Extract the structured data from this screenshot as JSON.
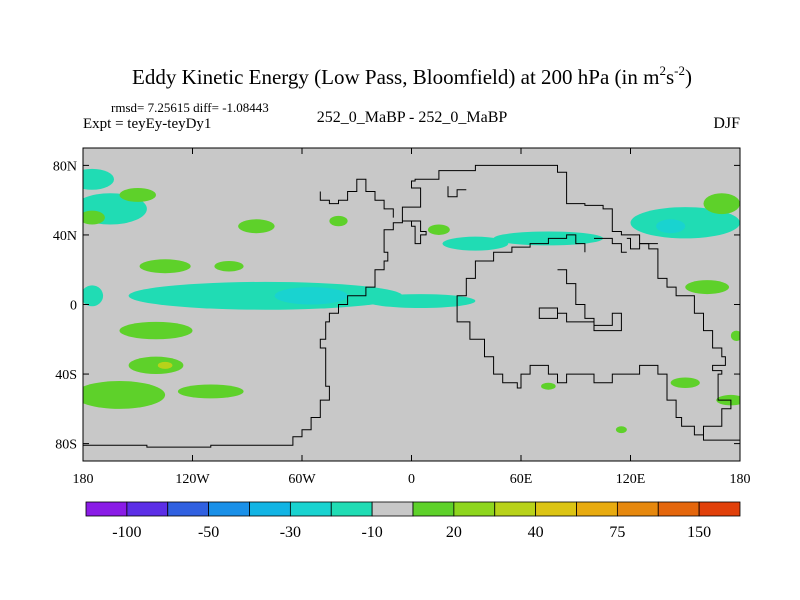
{
  "chart_data": {
    "type": "heatmap",
    "title_main": "Eddy Kinetic Energy (Low Pass, Bloomfield) at 200 hPa (in m",
    "title_sup1": "2",
    "title_mid": "s",
    "title_sup2": "-2",
    "title_end": ")",
    "stats": "rmsd= 7.25615 diff= -1.08443",
    "expt": "Expt = teyEy-teyDy1",
    "center_label": "252_0_MaBP - 252_0_MaBP",
    "season": "DJF",
    "x_ticks": [
      "180",
      "120W",
      "60W",
      "0",
      "60E",
      "120E",
      "180"
    ],
    "x_tick_values": [
      -180,
      -120,
      -60,
      0,
      60,
      120,
      180
    ],
    "y_ticks": [
      "80N",
      "40N",
      "0",
      "40S",
      "80S"
    ],
    "y_tick_values": [
      80,
      40,
      0,
      -40,
      -80
    ],
    "xlim": [
      -180,
      180
    ],
    "ylim": [
      -90,
      90
    ],
    "colorbar": {
      "colors": [
        "#8a1ce6",
        "#5c2ee6",
        "#3060e0",
        "#1a90e8",
        "#12b4e4",
        "#19d3d0",
        "#20dcb4",
        "#c8c8c8",
        "#5ed12a",
        "#8ed61e",
        "#b8d21a",
        "#dcc414",
        "#e8ab10",
        "#e6880e",
        "#e4660c",
        "#e1400a"
      ],
      "labels": [
        "-100",
        "-50",
        "-30",
        "-10",
        "20",
        "40",
        "75",
        "150"
      ],
      "label_after_box": [
        1,
        3,
        5,
        7,
        9,
        11,
        13,
        15
      ]
    },
    "blobs": [
      {
        "lon": -175,
        "lat": 72,
        "rlon": 12,
        "rlat": 6,
        "color": "#20dcb4"
      },
      {
        "lon": -165,
        "lat": 55,
        "rlon": 20,
        "rlat": 9,
        "color": "#20dcb4"
      },
      {
        "lon": -150,
        "lat": 63,
        "rlon": 10,
        "rlat": 4,
        "color": "#5ed12a"
      },
      {
        "lon": -175,
        "lat": 50,
        "rlon": 7,
        "rlat": 4,
        "color": "#5ed12a"
      },
      {
        "lon": -85,
        "lat": 45,
        "rlon": 10,
        "rlat": 4,
        "color": "#5ed12a"
      },
      {
        "lon": -40,
        "lat": 48,
        "rlon": 5,
        "rlat": 3,
        "color": "#5ed12a"
      },
      {
        "lon": -135,
        "lat": 22,
        "rlon": 14,
        "rlat": 4,
        "color": "#5ed12a"
      },
      {
        "lon": -100,
        "lat": 22,
        "rlon": 8,
        "rlat": 3,
        "color": "#5ed12a"
      },
      {
        "lon": -80,
        "lat": 5,
        "rlon": 75,
        "rlat": 8,
        "color": "#20dcb4"
      },
      {
        "lon": -55,
        "lat": 5,
        "rlon": 20,
        "rlat": 5,
        "color": "#19d3d0"
      },
      {
        "lon": 5,
        "lat": 2,
        "rlon": 30,
        "rlat": 4,
        "color": "#20dcb4"
      },
      {
        "lon": -175,
        "lat": 5,
        "rlon": 6,
        "rlat": 6,
        "color": "#20dcb4"
      },
      {
        "lon": 35,
        "lat": 35,
        "rlon": 18,
        "rlat": 4,
        "color": "#20dcb4"
      },
      {
        "lon": 75,
        "lat": 38,
        "rlon": 30,
        "rlat": 4,
        "color": "#20dcb4"
      },
      {
        "lon": 15,
        "lat": 43,
        "rlon": 6,
        "rlat": 3,
        "color": "#5ed12a"
      },
      {
        "lon": 150,
        "lat": 47,
        "rlon": 30,
        "rlat": 9,
        "color": "#20dcb4"
      },
      {
        "lon": 142,
        "lat": 45,
        "rlon": 8,
        "rlat": 4,
        "color": "#19d3d0"
      },
      {
        "lon": 170,
        "lat": 58,
        "rlon": 10,
        "rlat": 6,
        "color": "#5ed12a"
      },
      {
        "lon": 162,
        "lat": 10,
        "rlon": 12,
        "rlat": 4,
        "color": "#5ed12a"
      },
      {
        "lon": -140,
        "lat": -15,
        "rlon": 20,
        "rlat": 5,
        "color": "#5ed12a"
      },
      {
        "lon": -140,
        "lat": -35,
        "rlon": 15,
        "rlat": 5,
        "color": "#5ed12a"
      },
      {
        "lon": -135,
        "lat": -35,
        "rlon": 4,
        "rlat": 2,
        "color": "#b8d21a"
      },
      {
        "lon": -160,
        "lat": -52,
        "rlon": 25,
        "rlat": 8,
        "color": "#5ed12a"
      },
      {
        "lon": -110,
        "lat": -50,
        "rlon": 18,
        "rlat": 4,
        "color": "#5ed12a"
      },
      {
        "lon": 150,
        "lat": -45,
        "rlon": 8,
        "rlat": 3,
        "color": "#5ed12a"
      },
      {
        "lon": 175,
        "lat": -55,
        "rlon": 8,
        "rlat": 3,
        "color": "#5ed12a"
      },
      {
        "lon": 75,
        "lat": -47,
        "rlon": 4,
        "rlat": 2,
        "color": "#5ed12a"
      },
      {
        "lon": 115,
        "lat": -72,
        "rlon": 3,
        "rlat": 2,
        "color": "#5ed12a"
      },
      {
        "lon": 178,
        "lat": -18,
        "rlon": 3,
        "rlat": 3,
        "color": "#5ed12a"
      }
    ],
    "coastlines": [
      [
        [
          -180,
          -81
        ],
        [
          -145,
          -81
        ],
        [
          -145,
          -82
        ],
        [
          -110,
          -82
        ],
        [
          -110,
          -81
        ],
        [
          -65,
          -81
        ],
        [
          -65,
          -76
        ],
        [
          -60,
          -76
        ],
        [
          -60,
          -72
        ],
        [
          -55,
          -72
        ],
        [
          -55,
          -65
        ],
        [
          -50,
          -65
        ],
        [
          -50,
          -55
        ],
        [
          -45,
          -55
        ],
        [
          -45,
          -47
        ],
        [
          -47,
          -47
        ],
        [
          -47,
          -25
        ],
        [
          -50,
          -25
        ],
        [
          -50,
          -20
        ],
        [
          -47,
          -20
        ],
        [
          -47,
          -10
        ],
        [
          -45,
          -10
        ],
        [
          -45,
          -5
        ],
        [
          -40,
          -5
        ],
        [
          -40,
          0
        ],
        [
          -35,
          0
        ],
        [
          -35,
          5
        ],
        [
          -25,
          5
        ],
        [
          -25,
          10
        ],
        [
          -20,
          10
        ],
        [
          -20,
          20
        ],
        [
          -15,
          20
        ],
        [
          -15,
          25
        ],
        [
          -13,
          25
        ],
        [
          -13,
          30
        ],
        [
          -15,
          30
        ],
        [
          -15,
          43
        ],
        [
          -10,
          43
        ],
        [
          -10,
          47
        ],
        [
          -5,
          47
        ],
        [
          -5,
          48
        ],
        [
          0,
          48
        ],
        [
          0,
          45
        ],
        [
          2,
          45
        ],
        [
          2,
          35
        ],
        [
          5,
          35
        ],
        [
          5,
          40
        ],
        [
          8,
          40
        ],
        [
          8,
          42
        ],
        [
          5,
          42
        ],
        [
          5,
          48
        ],
        [
          -5,
          48
        ],
        [
          -5,
          56
        ],
        [
          5,
          56
        ],
        [
          5,
          67
        ],
        [
          0,
          67
        ],
        [
          0,
          71
        ],
        [
          2,
          71
        ],
        [
          2,
          72
        ],
        [
          15,
          72
        ],
        [
          15,
          77
        ],
        [
          35,
          77
        ],
        [
          35,
          80
        ],
        [
          80,
          80
        ],
        [
          80,
          76
        ],
        [
          85,
          76
        ],
        [
          85,
          58
        ],
        [
          95,
          58
        ],
        [
          95,
          57
        ],
        [
          105,
          57
        ],
        [
          105,
          55
        ],
        [
          110,
          55
        ],
        [
          110,
          42
        ],
        [
          115,
          42
        ],
        [
          115,
          40
        ],
        [
          125,
          40
        ],
        [
          125,
          35
        ],
        [
          130,
          35
        ],
        [
          130,
          32
        ],
        [
          135,
          32
        ],
        [
          135,
          15
        ],
        [
          140,
          15
        ],
        [
          140,
          10
        ],
        [
          145,
          10
        ],
        [
          145,
          5
        ],
        [
          155,
          5
        ],
        [
          155,
          -5
        ],
        [
          160,
          -5
        ],
        [
          160,
          -15
        ],
        [
          165,
          -15
        ],
        [
          165,
          -25
        ],
        [
          170,
          -25
        ],
        [
          170,
          -30
        ],
        [
          172,
          -30
        ],
        [
          172,
          -35
        ],
        [
          165,
          -35
        ],
        [
          165,
          -38
        ],
        [
          170,
          -38
        ],
        [
          170,
          -40
        ],
        [
          168,
          -40
        ],
        [
          168,
          -55
        ],
        [
          175,
          -55
        ],
        [
          175,
          -60
        ],
        [
          170,
          -60
        ],
        [
          170,
          -70
        ],
        [
          160,
          -70
        ],
        [
          160,
          -78
        ],
        [
          180,
          -78
        ]
      ],
      [
        [
          95,
          30
        ],
        [
          95,
          35
        ],
        [
          90,
          35
        ],
        [
          90,
          40
        ],
        [
          85,
          40
        ],
        [
          85,
          38
        ],
        [
          75,
          38
        ],
        [
          75,
          35
        ],
        [
          65,
          35
        ],
        [
          65,
          33
        ],
        [
          55,
          33
        ],
        [
          55,
          30
        ],
        [
          45,
          30
        ],
        [
          45,
          25
        ],
        [
          35,
          25
        ],
        [
          35,
          15
        ],
        [
          30,
          15
        ],
        [
          30,
          5
        ],
        [
          25,
          5
        ],
        [
          25,
          -10
        ],
        [
          32,
          -10
        ],
        [
          32,
          -20
        ],
        [
          40,
          -20
        ],
        [
          40,
          -30
        ],
        [
          45,
          -30
        ],
        [
          45,
          -40
        ],
        [
          50,
          -40
        ],
        [
          50,
          -45
        ],
        [
          58,
          -45
        ],
        [
          58,
          -48
        ],
        [
          60,
          -48
        ],
        [
          60,
          -40
        ],
        [
          65,
          -40
        ],
        [
          65,
          -35
        ],
        [
          75,
          -35
        ],
        [
          75,
          -40
        ],
        [
          80,
          -40
        ],
        [
          80,
          -45
        ],
        [
          85,
          -45
        ],
        [
          85,
          -40
        ],
        [
          100,
          -40
        ],
        [
          100,
          -45
        ],
        [
          110,
          -45
        ],
        [
          110,
          -40
        ],
        [
          125,
          -40
        ],
        [
          125,
          -35
        ],
        [
          135,
          -35
        ],
        [
          135,
          -40
        ],
        [
          140,
          -40
        ],
        [
          140,
          -55
        ],
        [
          145,
          -55
        ],
        [
          145,
          -65
        ],
        [
          148,
          -65
        ],
        [
          148,
          -70
        ],
        [
          155,
          -70
        ],
        [
          155,
          -75
        ],
        [
          160,
          -75
        ]
      ],
      [
        [
          -50,
          65
        ],
        [
          -50,
          60
        ],
        [
          -45,
          60
        ],
        [
          -45,
          58
        ],
        [
          -40,
          58
        ],
        [
          -40,
          60
        ],
        [
          -35,
          60
        ],
        [
          -35,
          65
        ],
        [
          -30,
          65
        ],
        [
          -30,
          72
        ],
        [
          -25,
          72
        ],
        [
          -25,
          65
        ],
        [
          -20,
          65
        ],
        [
          -20,
          60
        ],
        [
          -15,
          60
        ],
        [
          -15,
          55
        ],
        [
          -10,
          55
        ],
        [
          -10,
          50
        ]
      ],
      [
        [
          80,
          20
        ],
        [
          85,
          20
        ],
        [
          85,
          12
        ],
        [
          90,
          12
        ],
        [
          90,
          0
        ],
        [
          95,
          0
        ],
        [
          95,
          -8
        ],
        [
          100,
          -8
        ],
        [
          100,
          -12
        ],
        [
          110,
          -12
        ],
        [
          110,
          -5
        ],
        [
          115,
          -5
        ],
        [
          115,
          -15
        ],
        [
          100,
          -15
        ],
        [
          100,
          -10
        ],
        [
          85,
          -10
        ],
        [
          85,
          -5
        ],
        [
          80,
          -5
        ],
        [
          80,
          -2
        ],
        [
          70,
          -2
        ],
        [
          70,
          -8
        ],
        [
          80,
          -8
        ],
        [
          80,
          -5
        ]
      ],
      [
        [
          100,
          38
        ],
        [
          110,
          38
        ],
        [
          110,
          35
        ],
        [
          115,
          35
        ],
        [
          115,
          30
        ],
        [
          118,
          30
        ]
      ],
      [
        [
          118,
          38
        ],
        [
          120,
          38
        ],
        [
          120,
          32
        ],
        [
          125,
          32
        ],
        [
          125,
          35
        ],
        [
          135,
          35
        ]
      ],
      [
        [
          20,
          68
        ],
        [
          20,
          62
        ],
        [
          25,
          62
        ],
        [
          25,
          66
        ],
        [
          30,
          66
        ]
      ]
    ]
  }
}
